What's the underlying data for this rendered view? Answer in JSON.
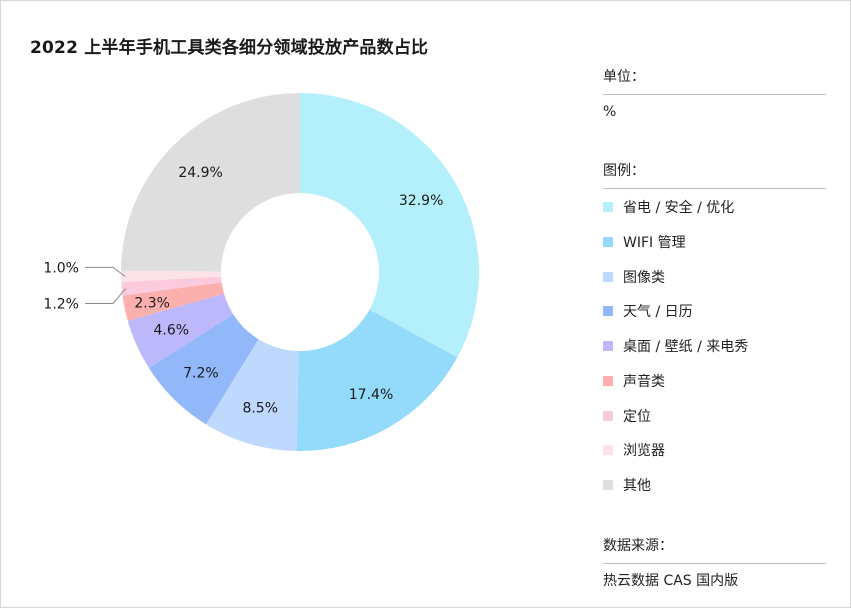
{
  "title": "2022 上半年手机工具类各细分领域投放产品数占比",
  "unit_label": "单位：",
  "unit_value": "%",
  "legend_label": "图例：",
  "source_label": "数据来源：",
  "source_value": "热云数据 CAS 国内版",
  "chart_data": {
    "type": "pie",
    "donut": true,
    "title": "2022 上半年手机工具类各细分领域投放产品数占比",
    "unit": "%",
    "legend_placement": "right",
    "categories": [
      "省电 / 安全 / 优化",
      "WIFI 管理",
      "图像类",
      "天气 / 日历",
      "桌面 / 壁纸 / 来电秀",
      "声音类",
      "定位",
      "浏览器",
      "其他"
    ],
    "values": [
      32.9,
      17.4,
      8.5,
      7.2,
      4.6,
      2.3,
      1.2,
      1.0,
      24.9
    ],
    "labels": [
      "32.9%",
      "17.4%",
      "8.5%",
      "7.2%",
      "4.6%",
      "2.3%",
      "1.2%",
      "1.0%",
      "24.9%"
    ],
    "colors": [
      "#b3f0fb",
      "#94dbfb",
      "#bfd8fd",
      "#92b8fa",
      "#bdb8fb",
      "#fbb0ae",
      "#fccadd",
      "#fce3e7",
      "#dedede"
    ]
  }
}
